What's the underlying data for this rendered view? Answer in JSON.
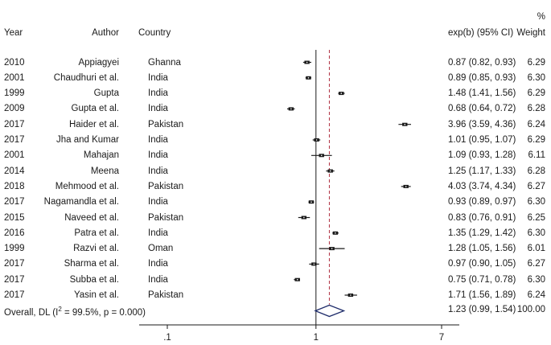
{
  "chart_data": {
    "type": "forest",
    "title": "",
    "xlabel": "",
    "ylabel": "",
    "x_scale": "log",
    "x_ticks": [
      {
        "value": 0.1,
        "label": ".1"
      },
      {
        "value": 1,
        "label": "1"
      },
      {
        "value": 7,
        "label": "7"
      }
    ],
    "xlim": [
      0.0595,
      9.85
    ],
    "reference_line": 1,
    "pooled_line": 1.23,
    "headers": {
      "year": "Year",
      "author": "Author",
      "country": "Country",
      "estimate": "exp(b) (95% CI)",
      "weight_top": "%",
      "weight": "Weight"
    },
    "studies": [
      {
        "year": "2010",
        "author": "Appiagyei",
        "country": "Ghanna",
        "est": 0.87,
        "lo": 0.82,
        "hi": 0.93,
        "ci_text": "0.87 (0.82, 0.93)",
        "weight": "6.29"
      },
      {
        "year": "2001",
        "author": "Chaudhuri et al.",
        "country": "India",
        "est": 0.89,
        "lo": 0.85,
        "hi": 0.93,
        "ci_text": "0.89 (0.85, 0.93)",
        "weight": "6.30"
      },
      {
        "year": "1999",
        "author": "Gupta",
        "country": "India",
        "est": 1.48,
        "lo": 1.41,
        "hi": 1.56,
        "ci_text": "1.48 (1.41, 1.56)",
        "weight": "6.29"
      },
      {
        "year": "2009",
        "author": "Gupta et al.",
        "country": "India",
        "est": 0.68,
        "lo": 0.64,
        "hi": 0.72,
        "ci_text": "0.68 (0.64, 0.72)",
        "weight": "6.28"
      },
      {
        "year": "2017",
        "author": "Haider et al.",
        "country": "Pakistan",
        "est": 3.96,
        "lo": 3.59,
        "hi": 4.36,
        "ci_text": "3.96 (3.59, 4.36)",
        "weight": "6.24"
      },
      {
        "year": "2017",
        "author": "Jha and Kumar",
        "country": "India",
        "est": 1.01,
        "lo": 0.95,
        "hi": 1.07,
        "ci_text": "1.01 (0.95, 1.07)",
        "weight": "6.29"
      },
      {
        "year": "2001",
        "author": "Mahajan",
        "country": "India",
        "est": 1.09,
        "lo": 0.93,
        "hi": 1.28,
        "ci_text": "1.09 (0.93, 1.28)",
        "weight": "6.11"
      },
      {
        "year": "2014",
        "author": "Meena",
        "country": "India",
        "est": 1.25,
        "lo": 1.17,
        "hi": 1.33,
        "ci_text": "1.25 (1.17, 1.33)",
        "weight": "6.28"
      },
      {
        "year": "2018",
        "author": "Mehmood et al.",
        "country": "Pakistan",
        "est": 4.03,
        "lo": 3.74,
        "hi": 4.34,
        "ci_text": "4.03 (3.74, 4.34)",
        "weight": "6.27"
      },
      {
        "year": "2017",
        "author": "Nagamandla et al.",
        "country": "India",
        "est": 0.93,
        "lo": 0.89,
        "hi": 0.97,
        "ci_text": "0.93 (0.89, 0.97)",
        "weight": "6.30"
      },
      {
        "year": "2015",
        "author": "Naveed et al.",
        "country": "Pakistan",
        "est": 0.83,
        "lo": 0.76,
        "hi": 0.91,
        "ci_text": "0.83 (0.76, 0.91)",
        "weight": "6.25"
      },
      {
        "year": "2016",
        "author": "Patra et al.",
        "country": "India",
        "est": 1.35,
        "lo": 1.29,
        "hi": 1.42,
        "ci_text": "1.35 (1.29, 1.42)",
        "weight": "6.30"
      },
      {
        "year": "1999",
        "author": "Razvi et al.",
        "country": "Oman",
        "est": 1.28,
        "lo": 1.05,
        "hi": 1.56,
        "ci_text": "1.28 (1.05, 1.56)",
        "weight": "6.01"
      },
      {
        "year": "2017",
        "author": "Sharma et al.",
        "country": "India",
        "est": 0.97,
        "lo": 0.9,
        "hi": 1.05,
        "ci_text": "0.97 (0.90, 1.05)",
        "weight": "6.27"
      },
      {
        "year": "2017",
        "author": "Subba et al.",
        "country": "India",
        "est": 0.75,
        "lo": 0.71,
        "hi": 0.78,
        "ci_text": "0.75 (0.71, 0.78)",
        "weight": "6.30"
      },
      {
        "year": "2017",
        "author": "Yasin et al.",
        "country": "Pakistan",
        "est": 1.71,
        "lo": 1.56,
        "hi": 1.89,
        "ci_text": "1.71 (1.56, 1.89)",
        "weight": "6.24"
      }
    ],
    "overall": {
      "label_prefix": "Overall, DL (I",
      "label_sup": "2",
      "label_suffix": " = 99.5%, p = 0.000)",
      "est": 1.23,
      "lo": 0.99,
      "hi": 1.54,
      "ci_text": "1.23 (0.99, 1.54)",
      "weight": "100.00"
    },
    "colors": {
      "marker": "#1a1a1a",
      "pooled_line": "#b03040",
      "diamond": "#1f2d6b",
      "axis": "#1a1a1a"
    }
  }
}
